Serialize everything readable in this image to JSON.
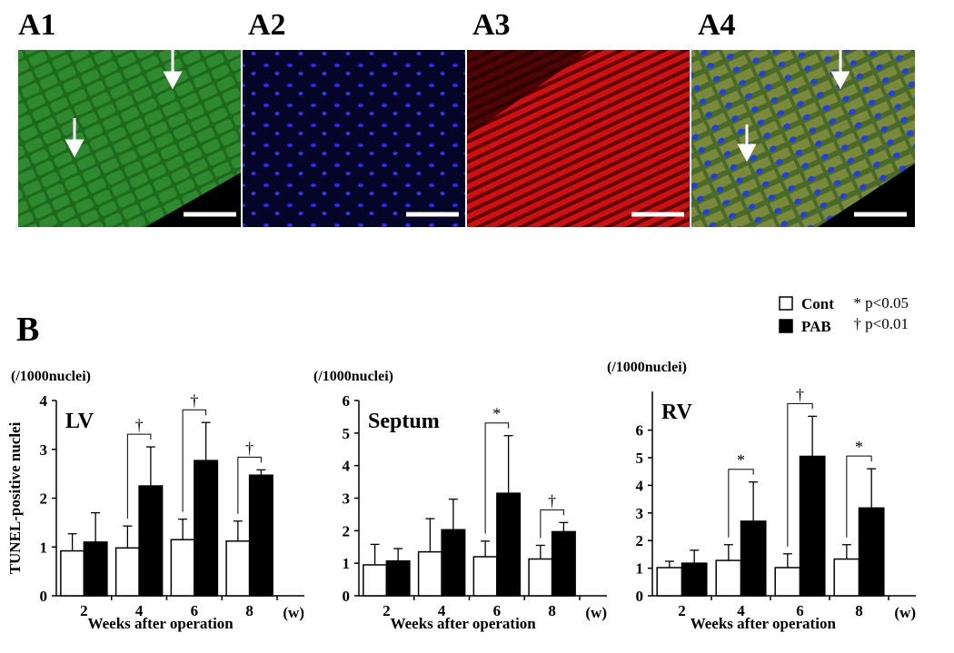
{
  "panel_labels": [
    "A1",
    "A2",
    "A3",
    "A4"
  ],
  "panel_b_label": "B",
  "significance_notes": [
    "* p<0.05",
    "† p<0.01"
  ],
  "chart_data": [
    {
      "type": "bar",
      "title": "LV",
      "unit": "(/1000nuclei)",
      "y_label": "TUNEL-positive nuclei",
      "x_label": "Weeks after operation",
      "x_unit": "(w)",
      "categories": [
        "2",
        "4",
        "6",
        "8"
      ],
      "series": [
        {
          "name": "Cont",
          "color": "#ffffff",
          "values": [
            0.92,
            0.98,
            1.15,
            1.12
          ],
          "errors": [
            0.35,
            0.45,
            0.42,
            0.41
          ]
        },
        {
          "name": "PAB",
          "color": "#000000",
          "values": [
            1.1,
            2.25,
            2.77,
            2.47
          ],
          "errors": [
            0.6,
            0.8,
            0.78,
            0.11
          ]
        }
      ],
      "significance": [
        null,
        "†",
        "†",
        "†"
      ],
      "ylim": [
        0,
        4
      ],
      "yticks": [
        0,
        1,
        2,
        3,
        4
      ]
    },
    {
      "type": "bar",
      "title": "Septum",
      "unit": "(/1000nuclei)",
      "x_label": "Weeks after operation",
      "x_unit": "(w)",
      "categories": [
        "2",
        "4",
        "6",
        "8"
      ],
      "series": [
        {
          "color": "#ffffff",
          "values": [
            0.95,
            1.35,
            1.2,
            1.13
          ],
          "errors": [
            0.63,
            1.02,
            0.48,
            0.42
          ]
        },
        {
          "color": "#000000",
          "values": [
            1.07,
            2.03,
            3.15,
            1.97
          ],
          "errors": [
            0.38,
            0.94,
            1.77,
            0.28
          ]
        }
      ],
      "significance": [
        null,
        null,
        "*",
        "†"
      ],
      "ylim": [
        0,
        6
      ],
      "yticks": [
        0,
        1,
        2,
        3,
        4,
        5,
        6
      ]
    },
    {
      "type": "bar",
      "title": "RV",
      "unit": "(/1000nuclei)",
      "x_label": "Weeks after operation",
      "x_unit": "(w)",
      "categories": [
        "2",
        "4",
        "6",
        "8"
      ],
      "series": [
        {
          "color": "#ffffff",
          "values": [
            1.02,
            1.28,
            1.02,
            1.33
          ],
          "errors": [
            0.23,
            0.57,
            0.5,
            0.52
          ]
        },
        {
          "color": "#000000",
          "values": [
            1.18,
            2.7,
            5.05,
            3.18
          ],
          "errors": [
            0.47,
            1.42,
            1.45,
            1.42
          ]
        }
      ],
      "significance": [
        null,
        "*",
        "†",
        "*"
      ],
      "ylim": [
        0,
        7.4
      ],
      "yticks": [
        0,
        1,
        2,
        3,
        4,
        5,
        6
      ]
    }
  ]
}
